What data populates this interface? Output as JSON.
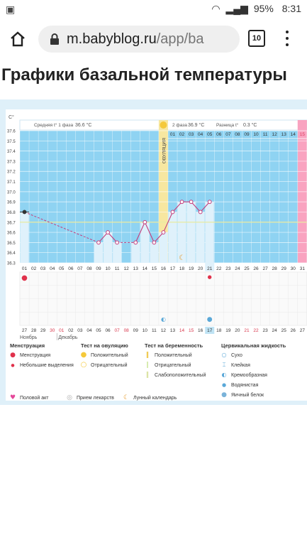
{
  "statusbar": {
    "battery": "95%",
    "time": "8:31"
  },
  "browser": {
    "url_host": "m.babyblog.ru",
    "url_path": "/app/ba",
    "tab_count": "10"
  },
  "page": {
    "title": "Графики базальной температуры"
  },
  "chart": {
    "unit_label": "С°",
    "phase1_label": "Средняя t° 1 фаза",
    "phase1_value": "36.6 °С",
    "phase2_label": "2 фаза",
    "phase2_value": "36.9 °С",
    "diff_label": "Разница t°",
    "diff_value": "0.3 °С",
    "ovulation_label": "ОВУЛЯЦИЯ",
    "month_nov": "Ноябрь",
    "month_dec": "Декабрь"
  },
  "chart_data": {
    "type": "line",
    "y_ticks": [
      "37.6",
      "37.5",
      "37.4",
      "37.3",
      "37.2",
      "37.1",
      "37.0",
      "36.9",
      "36.8",
      "36.7",
      "36.6",
      "36.5",
      "36.4",
      "36.3"
    ],
    "ylim": [
      36.3,
      37.6
    ],
    "cycle_days": [
      "01",
      "02",
      "03",
      "04",
      "05",
      "06",
      "07",
      "08",
      "09",
      "10",
      "11",
      "12",
      "13",
      "14",
      "15",
      "16",
      "17",
      "18",
      "19",
      "20",
      "21",
      "22",
      "23",
      "24",
      "25",
      "26",
      "27",
      "28",
      "29",
      "30",
      "31"
    ],
    "top_days": [
      "01",
      "02",
      "03",
      "04",
      "05",
      "06",
      "07",
      "08",
      "09",
      "10",
      "11",
      "12",
      "13",
      "14",
      "15"
    ],
    "dates": [
      "27",
      "28",
      "29",
      "30",
      "01",
      "02",
      "03",
      "04",
      "05",
      "06",
      "07",
      "08",
      "09",
      "10",
      "11",
      "12",
      "13",
      "14",
      "15",
      "16",
      "17",
      "18",
      "19",
      "20",
      "21",
      "22",
      "23",
      "24",
      "25",
      "26",
      "27"
    ],
    "red_dates": [
      "30",
      "01",
      "07",
      "08",
      "14",
      "15",
      "21",
      "22"
    ],
    "points": [
      {
        "day": 1,
        "t": 36.8
      },
      {
        "day": 9,
        "t": 36.5
      },
      {
        "day": 10,
        "t": 36.6
      },
      {
        "day": 11,
        "t": 36.5
      },
      {
        "day": 13,
        "t": 36.5
      },
      {
        "day": 14,
        "t": 36.7
      },
      {
        "day": 15,
        "t": 36.5
      },
      {
        "day": 16,
        "t": 36.6
      },
      {
        "day": 17,
        "t": 36.8
      },
      {
        "day": 18,
        "t": 36.9
      },
      {
        "day": 19,
        "t": 36.9
      },
      {
        "day": 20,
        "t": 36.8
      },
      {
        "day": 21,
        "t": 36.9
      }
    ],
    "coverline": 36.7,
    "ovulation_day": 16,
    "highlight_day": 21,
    "highlight_date": "17"
  },
  "legend": {
    "col1_title": "Менструация",
    "col1_items": [
      "Менструация",
      "Небольшие выделения"
    ],
    "col2_title": "Тест на овуляцию",
    "col2_items": [
      "Положительный",
      "Отрицательный"
    ],
    "col3_title": "Тест на беременность",
    "col3_items": [
      "Положительный",
      "Отрицательный",
      "Слабоположительный"
    ],
    "col4_title": "Цервикальная жидкость",
    "col4_items": [
      "Сухо",
      "Клейкая",
      "Кремообразная",
      "Водянистая",
      "Яичный белок"
    ],
    "extra_items": [
      "Половой акт",
      "Прием лекарств",
      "Лунный календарь"
    ]
  },
  "colors": {
    "sky": "#8fd3f2",
    "ovulation": "#f7e7a0",
    "pink": "#f9a3c0",
    "line": "#c43d7c",
    "menses": "#e0314b"
  }
}
